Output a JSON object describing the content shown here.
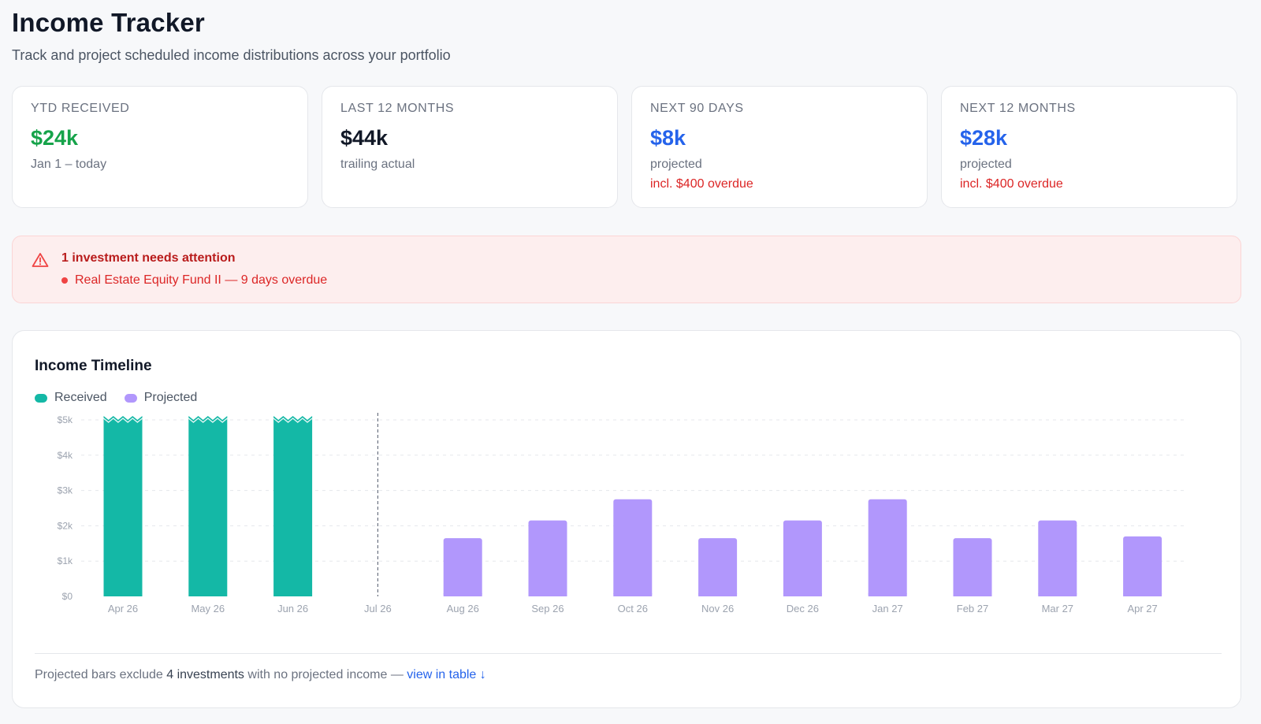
{
  "header": {
    "title": "Income Tracker",
    "subtitle": "Track and project scheduled income distributions across your portfolio"
  },
  "cards": [
    {
      "label": "YTD RECEIVED",
      "value": "$24k",
      "value_color": "#16a34a",
      "note": "Jan 1 – today",
      "warning": ""
    },
    {
      "label": "LAST 12 MONTHS",
      "value": "$44k",
      "value_color": "#111827",
      "note": "trailing actual",
      "warning": ""
    },
    {
      "label": "NEXT 90 DAYS",
      "value": "$8k",
      "value_color": "#2563eb",
      "note": "projected",
      "warning": "incl. $400 overdue"
    },
    {
      "label": "NEXT 12 MONTHS",
      "value": "$28k",
      "value_color": "#2563eb",
      "note": "projected",
      "warning": "incl. $400 overdue"
    }
  ],
  "alert": {
    "icon": "warning-triangle-icon",
    "title": "1 investment needs attention",
    "item": "Real Estate Equity Fund II — 9 days overdue"
  },
  "timeline": {
    "title": "Income Timeline",
    "legend": [
      {
        "label": "Received",
        "color": "#14b8a6"
      },
      {
        "label": "Projected",
        "color": "#b197fc"
      }
    ],
    "footer": {
      "prefix": "Projected bars exclude",
      "count": "4 investments",
      "suffix": "with no projected income —",
      "link": "view in table ↓"
    }
  },
  "chart_data": {
    "type": "bar",
    "categories": [
      "Apr 26",
      "May 26",
      "Jun 26",
      "Jul 26",
      "Aug 26",
      "Sep 26",
      "Oct 26",
      "Nov 26",
      "Dec 26",
      "Jan 27",
      "Feb 27",
      "Mar 27",
      "Apr 27"
    ],
    "series": [
      {
        "name": "Received",
        "color": "#14b8a6",
        "values": [
          5000,
          5000,
          5000,
          null,
          null,
          null,
          null,
          null,
          null,
          null,
          null,
          null,
          null
        ],
        "clipped_above_axis": true
      },
      {
        "name": "Projected",
        "color": "#b197fc",
        "values": [
          null,
          null,
          null,
          null,
          1650,
          2150,
          2750,
          1650,
          2150,
          2750,
          1650,
          2150,
          1700
        ]
      }
    ],
    "y_ticks": [
      "$0",
      "$1k",
      "$2k",
      "$3k",
      "$4k",
      "$5k"
    ],
    "ylim": [
      0,
      5000
    ],
    "today_marker": "Jul 26",
    "grid": true,
    "legend_position": "top-left"
  }
}
